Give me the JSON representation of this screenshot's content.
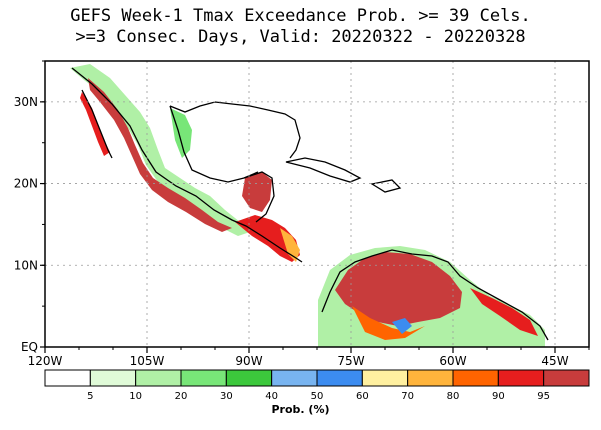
{
  "title": {
    "line1": "GEFS Week-1 Tmax Exceedance Prob. >= 39 Cels.",
    "line2": ">=3 Consec. Days, Valid: 20220322 - 20220328"
  },
  "map": {
    "lon_range": [
      -120,
      -40
    ],
    "lat_range": [
      0,
      35
    ],
    "x_ticks": [
      {
        "value": -120,
        "label": "120W"
      },
      {
        "value": -105,
        "label": "105W"
      },
      {
        "value": -90,
        "label": "90W"
      },
      {
        "value": -75,
        "label": "75W"
      },
      {
        "value": -60,
        "label": "60W"
      },
      {
        "value": -45,
        "label": "45W"
      }
    ],
    "y_ticks": [
      {
        "value": 0,
        "label": "EQ"
      },
      {
        "value": 10,
        "label": "10N"
      },
      {
        "value": 20,
        "label": "20N"
      },
      {
        "value": 30,
        "label": "30N"
      }
    ],
    "grid": true
  },
  "legend": {
    "labels": [
      "5",
      "10",
      "20",
      "30",
      "40",
      "50",
      "60",
      "70",
      "80",
      "90",
      "95"
    ],
    "colors": [
      "#ffffff",
      "#e0fbd8",
      "#b0f0a6",
      "#78e678",
      "#3cc83c",
      "#78b4f0",
      "#3c8cf0",
      "#fff0a0",
      "#ffb43c",
      "#ff6400",
      "#e61e1e",
      "#c83c3c"
    ],
    "units": "Prob. (%)"
  }
}
